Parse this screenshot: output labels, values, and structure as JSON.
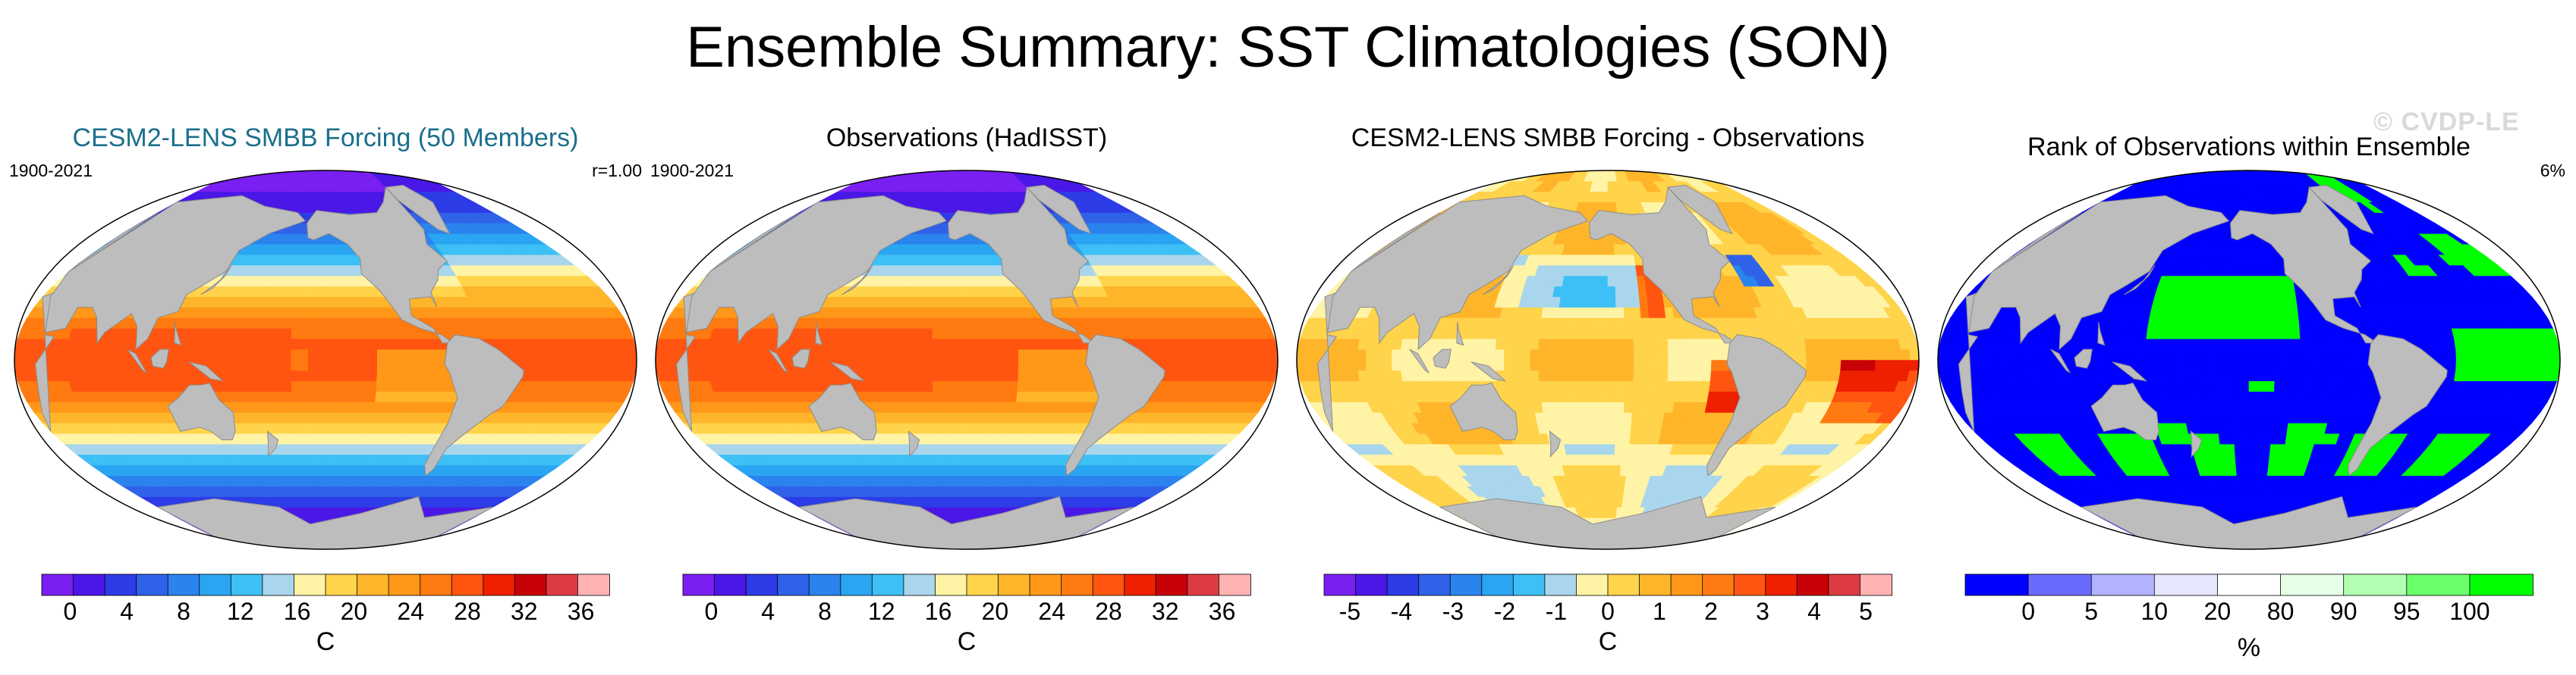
{
  "title": "Ensemble Summary: SST Climatologies (SON)",
  "watermark": "© CVDP-LE",
  "colors": {
    "land": "#bdbdbd",
    "sst": [
      "#7a1ff2",
      "#4a18e6",
      "#2d3ce6",
      "#2f62e8",
      "#2b83ee",
      "#2aa5f2",
      "#3dc0f5",
      "#a9d6ec",
      "#fff3a6",
      "#ffd34a",
      "#ffb52a",
      "#ff9818",
      "#ff7a10",
      "#ff5511",
      "#ee2000",
      "#c80008",
      "#dd3b42",
      "#ffb3b3"
    ],
    "rank": [
      "#0000ff",
      "#6a6aff",
      "#b2b2ff",
      "#e6e6ff",
      "#ffffff",
      "#e6ffe6",
      "#b2ffb2",
      "#6aff6a",
      "#00ff00"
    ]
  },
  "chart_data": [
    {
      "type": "heatmap",
      "title": "CESM2-LENS SMBB Forcing (50 Members)",
      "period": "1900-2021",
      "stat": "r=1.00",
      "colorbar": {
        "ticks": [
          "0",
          "4",
          "8",
          "12",
          "16",
          "20",
          "24",
          "28",
          "32",
          "36"
        ],
        "unit": "C",
        "range": [
          -2,
          38
        ],
        "levels": 18
      },
      "variant": "sst-model"
    },
    {
      "type": "heatmap",
      "title": "Observations (HadISST)",
      "period": "1900-2021",
      "stat": "",
      "colorbar": {
        "ticks": [
          "0",
          "4",
          "8",
          "12",
          "16",
          "20",
          "24",
          "28",
          "32",
          "36"
        ],
        "unit": "C",
        "range": [
          -2,
          38
        ],
        "levels": 18
      },
      "variant": "sst-obs"
    },
    {
      "type": "heatmap",
      "title": "CESM2-LENS SMBB Forcing - Observations",
      "period": "",
      "stat": "",
      "colorbar": {
        "ticks": [
          "-5",
          "-4",
          "-3",
          "-2",
          "-1",
          "0",
          "1",
          "2",
          "3",
          "4",
          "5"
        ],
        "unit": "C",
        "range": [
          -5.5,
          5.5
        ],
        "levels": 18
      },
      "variant": "diff"
    },
    {
      "type": "heatmap",
      "title": "Rank of Observations within Ensemble",
      "period": "",
      "stat": "6%",
      "colorbar": {
        "ticks": [
          "0",
          "5",
          "10",
          "20",
          "80",
          "90",
          "95",
          "100"
        ],
        "unit": "%",
        "levels": 9
      },
      "variant": "rank"
    }
  ]
}
